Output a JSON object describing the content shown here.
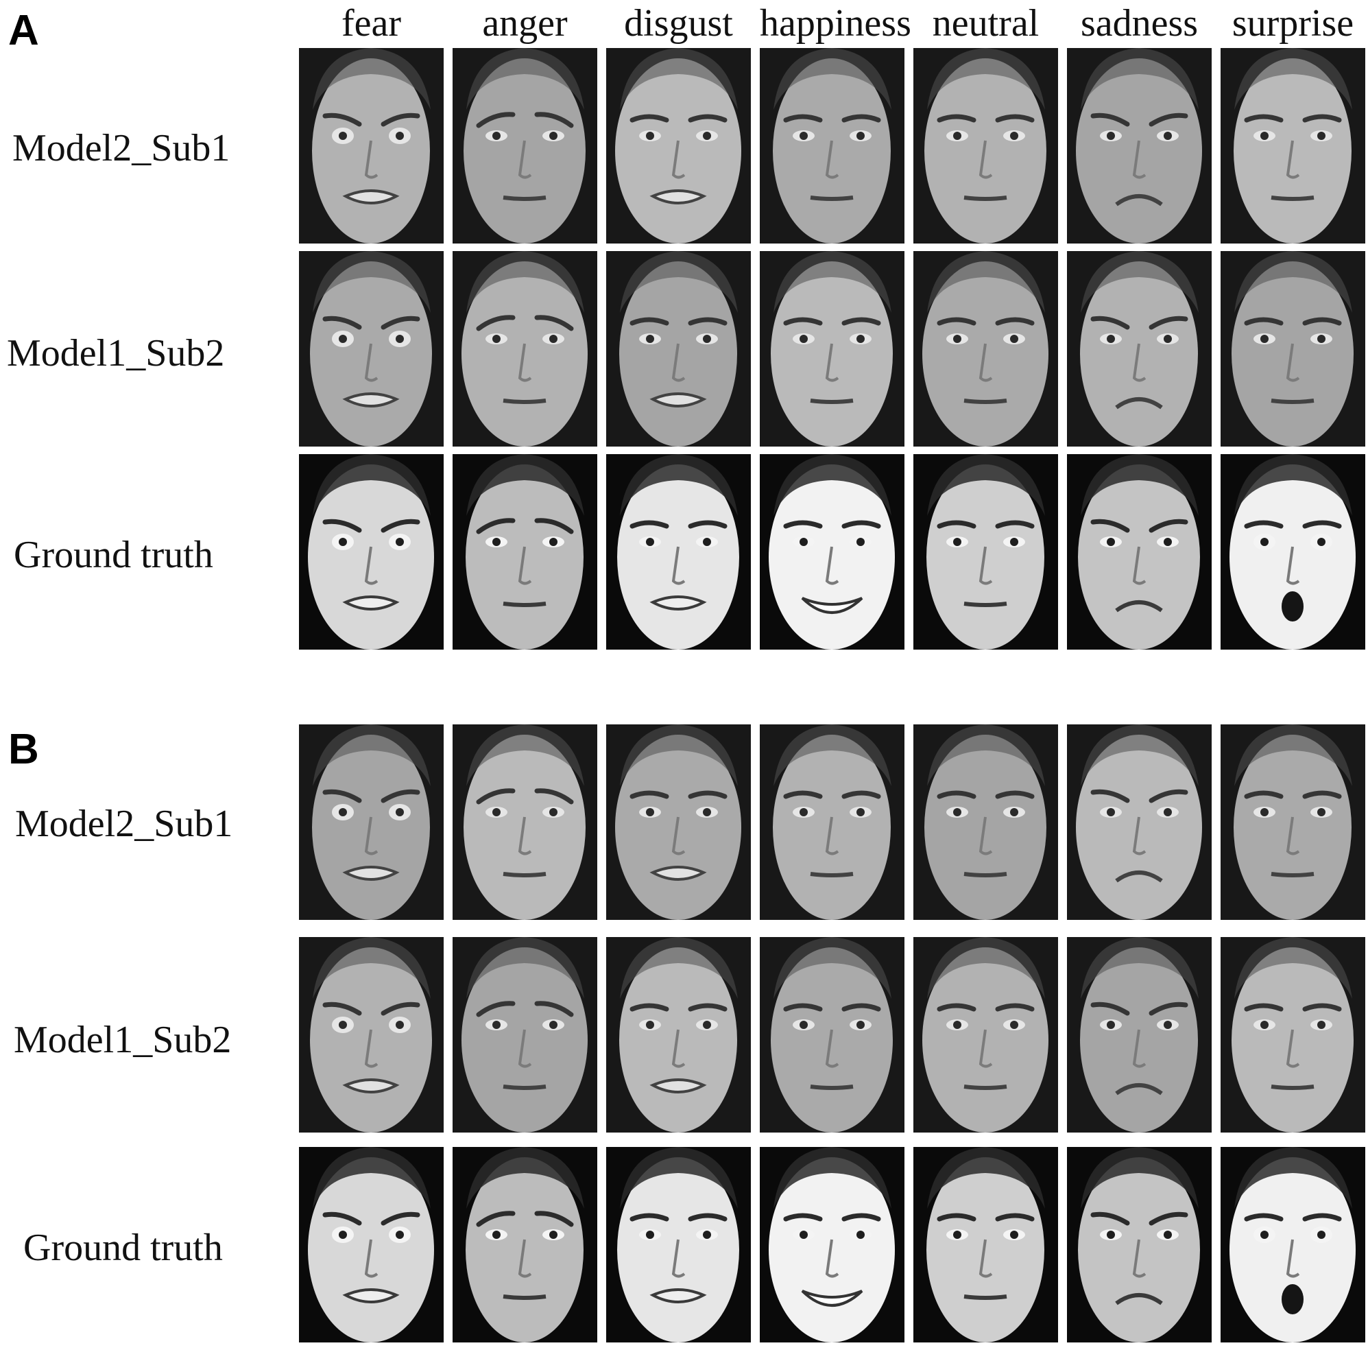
{
  "panels": [
    {
      "letter": "A",
      "columns": [
        "fear",
        "anger",
        "disgust",
        "happiness",
        "neutral",
        "sadness",
        "surprise"
      ],
      "rows": [
        {
          "label": "Model2_Sub1",
          "kind": "reconstruction"
        },
        {
          "label": "Model1_Sub2",
          "kind": "reconstruction"
        },
        {
          "label": "Ground truth",
          "kind": "ground-truth"
        }
      ]
    },
    {
      "letter": "B",
      "rows": [
        {
          "label": "Model2_Sub1",
          "kind": "reconstruction"
        },
        {
          "label": "Model1_Sub2",
          "kind": "reconstruction"
        },
        {
          "label": "Ground truth",
          "kind": "ground-truth"
        }
      ]
    }
  ],
  "face_images": {
    "panel_a": {
      "model2_sub1": [
        "reconstructed face",
        "reconstructed face",
        "reconstructed face",
        "reconstructed face",
        "reconstructed face",
        "reconstructed face",
        "reconstructed face"
      ],
      "model1_sub2": [
        "reconstructed face",
        "reconstructed face",
        "reconstructed face",
        "reconstructed face",
        "reconstructed face",
        "reconstructed face",
        "reconstructed face"
      ],
      "ground_truth": [
        "fearful man",
        "angry man",
        "disgusted face",
        "smiling woman",
        "neutral woman",
        "sad woman",
        "surprised woman"
      ]
    },
    "panel_b": {
      "model2_sub1": [
        "reconstructed face",
        "reconstructed face",
        "reconstructed face",
        "reconstructed face",
        "reconstructed face",
        "reconstructed face",
        "reconstructed face"
      ],
      "model1_sub2": [
        "reconstructed face",
        "reconstructed face",
        "reconstructed face",
        "reconstructed face",
        "reconstructed face",
        "reconstructed face",
        "reconstructed face"
      ],
      "ground_truth": [
        "fearful woman",
        "angry woman",
        "disgusted woman",
        "smiling woman",
        "neutral man",
        "sad man",
        "surprised man"
      ]
    }
  }
}
